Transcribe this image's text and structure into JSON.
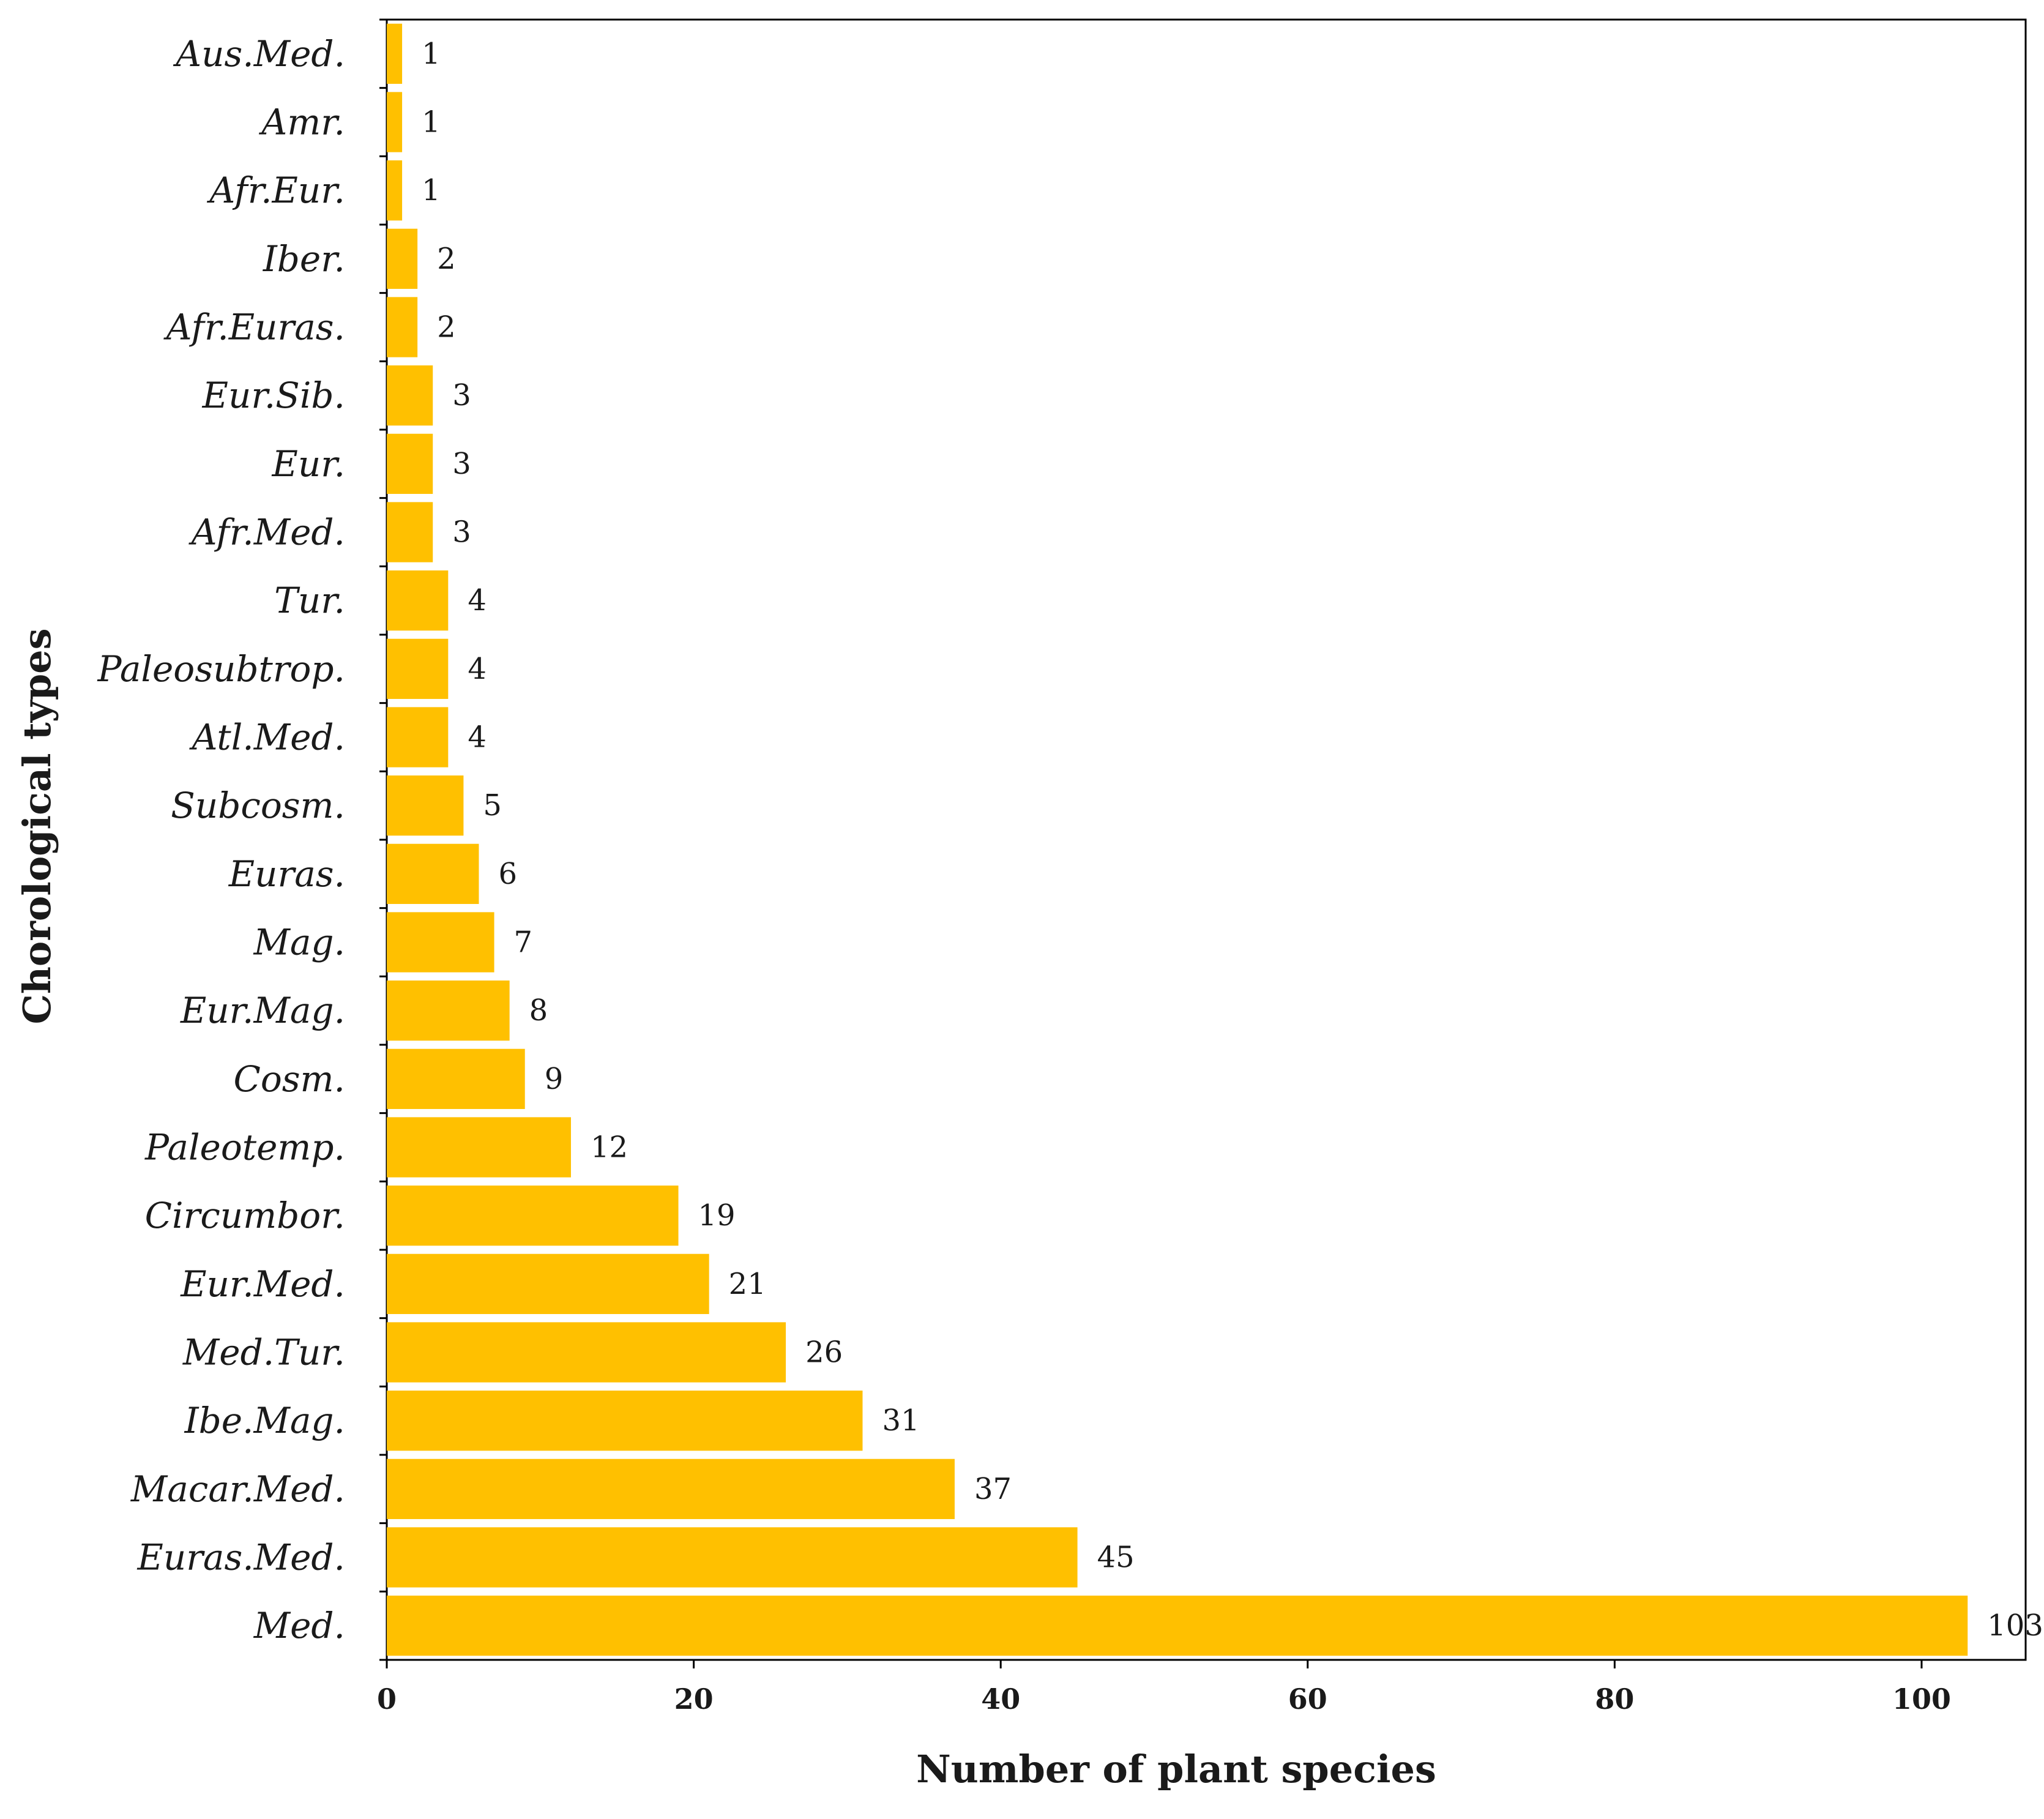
{
  "chart_data": {
    "type": "bar",
    "orientation": "horizontal",
    "xlabel": "Number of plant species",
    "ylabel": "Chorological types",
    "xlim": [
      0,
      110
    ],
    "xticks": [
      0,
      20,
      40,
      60,
      80,
      100
    ],
    "bar_color": "#FFC000",
    "grid": false,
    "categories": [
      "Aus.Med.",
      "Amr.",
      "Afr.Eur.",
      "Iber.",
      "Afr.Euras.",
      "Eur.Sib.",
      "Eur.",
      "Afr.Med.",
      "Tur.",
      "Paleosubtrop.",
      "Atl.Med.",
      "Subcosm.",
      "Euras.",
      "Mag.",
      "Eur.Mag.",
      "Cosm.",
      "Paleotemp.",
      "Circumbor.",
      "Eur.Med.",
      "Med.Tur.",
      "Ibe.Mag.",
      "Macar.Med.",
      "Euras.Med.",
      "Med."
    ],
    "values": [
      1,
      1,
      1,
      2,
      2,
      3,
      3,
      3,
      4,
      4,
      4,
      5,
      6,
      7,
      8,
      9,
      12,
      19,
      21,
      26,
      31,
      37,
      45,
      103
    ]
  }
}
